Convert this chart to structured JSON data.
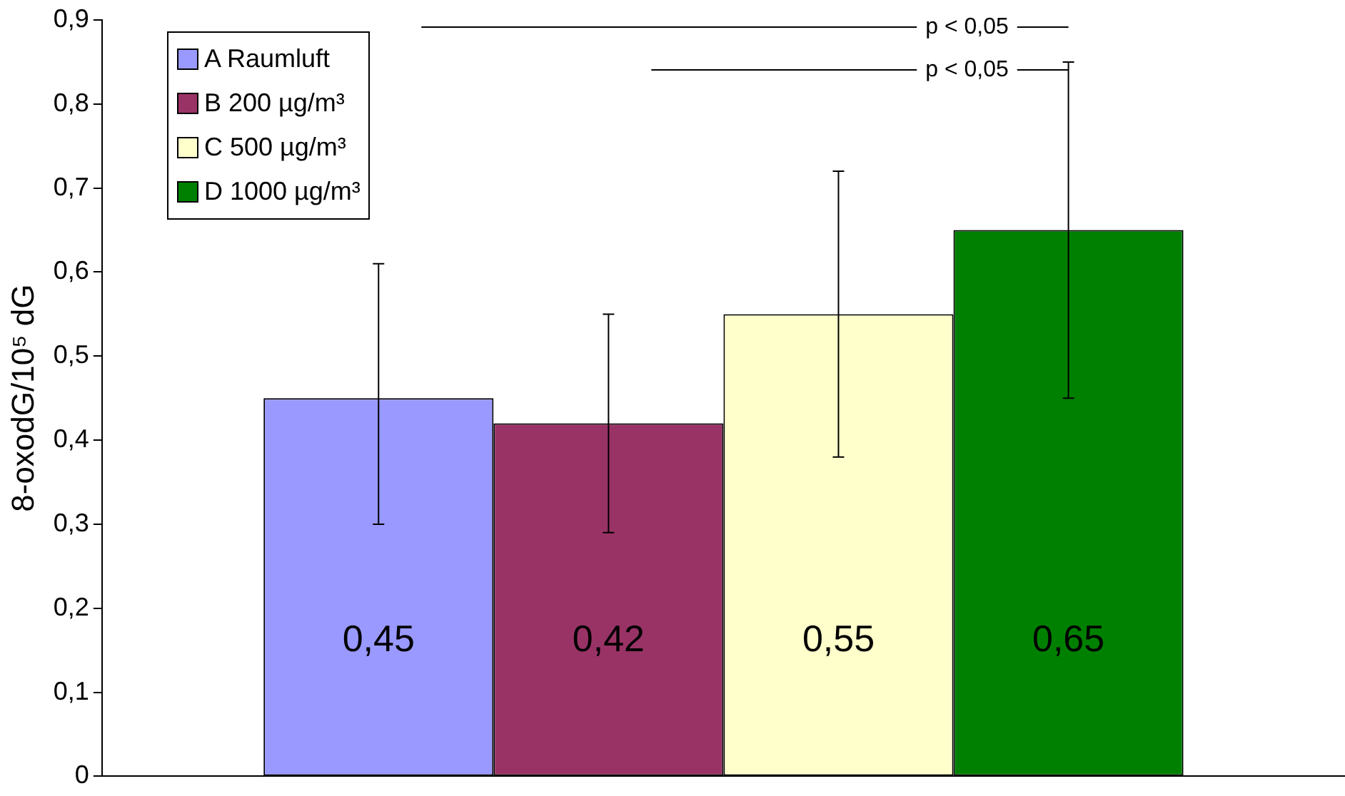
{
  "chart_data": {
    "type": "bar",
    "ylabel": "8-oxodG/10⁵ dG",
    "categories": [
      null
    ],
    "series": [
      {
        "name": "A Raumluft",
        "color": "#9999ff",
        "values": [
          0.45
        ],
        "value_labels": [
          "0,45"
        ],
        "errors": [
          [
            0.3,
            0.61
          ]
        ]
      },
      {
        "name": "B 200 µg/m³",
        "color": "#993366",
        "values": [
          0.42
        ],
        "value_labels": [
          "0,42"
        ],
        "errors": [
          [
            0.29,
            0.55
          ]
        ]
      },
      {
        "name": "C 500 µg/m³",
        "color": "#ffffcc",
        "values": [
          0.55
        ],
        "value_labels": [
          "0,55"
        ],
        "errors": [
          [
            0.38,
            0.72
          ]
        ]
      },
      {
        "name": "D 1000 µg/m³",
        "color": "#008000",
        "values": [
          0.65
        ],
        "value_labels": [
          "0,65"
        ],
        "errors": [
          [
            0.45,
            0.85
          ]
        ]
      }
    ],
    "ylim": [
      0,
      0.9
    ],
    "yticks": [
      0,
      {
        "value": 0.1,
        "label": "0,1"
      },
      {
        "value": 0.2,
        "label": "0,2"
      },
      {
        "value": 0.3,
        "label": "0,3"
      },
      {
        "value": 0.4,
        "label": "0,4"
      },
      {
        "value": 0.5,
        "label": "0,5"
      },
      {
        "value": 0.6,
        "label": "0,6"
      },
      {
        "value": 0.7,
        "label": "0,7"
      },
      {
        "value": 0.8,
        "label": "0,8"
      },
      {
        "value": 0.9,
        "label": "0,9"
      }
    ],
    "tick_labels": "y",
    "grid": false,
    "legend": "top left",
    "annotations": [
      "p < 0,05",
      "p < 0,05"
    ]
  }
}
